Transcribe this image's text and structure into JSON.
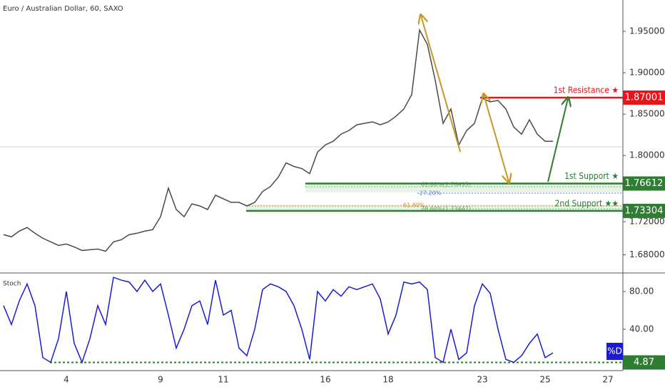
{
  "header": {
    "title": "Euro / Australian Dollar, 60, SAXO"
  },
  "annotations": [
    "61.80%(1.76435)",
    "-27.20%",
    "61.80%",
    "78.60%(1.73447)"
  ],
  "chart_data": [
    {
      "type": "line",
      "color": "#4a4a4a",
      "values": [
        1.7043,
        1.7017,
        1.7086,
        1.713,
        1.706,
        1.7,
        1.6956,
        1.6913,
        1.693,
        1.6895,
        1.6852,
        1.6861,
        1.6869,
        1.6843,
        1.6956,
        1.6982,
        1.7043,
        1.706,
        1.7086,
        1.7104,
        1.726,
        1.7607,
        1.7347,
        1.726,
        1.7416,
        1.739,
        1.7347,
        1.752,
        1.7477,
        1.7434,
        1.7434,
        1.739,
        1.7434,
        1.7564,
        1.7625,
        1.7738,
        1.7911,
        1.7868,
        1.7842,
        1.7781,
        1.8041,
        1.8128,
        1.8172,
        1.8258,
        1.8302,
        1.8371,
        1.8389,
        1.8406,
        1.8371,
        1.8406,
        1.8475,
        1.8562,
        1.8736,
        1.9517,
        1.9343,
        1.8909,
        1.8389,
        1.8562,
        1.8128,
        1.8302,
        1.8389,
        1.8692,
        1.8649,
        1.8666,
        1.8562,
        1.8345,
        1.8258,
        1.8432,
        1.8258,
        1.8172,
        1.8172,
        null,
        null,
        null,
        null,
        null,
        null,
        null
      ],
      "ylim": [
        1.658,
        1.988
      ],
      "yticks": [
        {
          "value": 1.95,
          "label": "1.95000"
        },
        {
          "value": 1.9,
          "label": "1.90000"
        },
        {
          "value": 1.85,
          "label": "1.85000"
        },
        {
          "value": 1.8,
          "label": "1.80000"
        },
        {
          "value": 1.72,
          "label": "1.72000"
        },
        {
          "value": 1.68,
          "label": "1.68000"
        }
      ],
      "levels": [
        {
          "label": "1st Resistance ★",
          "value": 1.87001,
          "color": "#e8141c"
        },
        {
          "label": "1st Support ★",
          "value": 1.76612,
          "color": "#2e7d32"
        },
        {
          "label": "2nd Support ★★",
          "value": 1.73304,
          "color": "#2e7d32"
        }
      ]
    },
    {
      "type": "line",
      "title": "Stoch",
      "categories": [
        null,
        null,
        null,
        null,
        null,
        null,
        null,
        null,
        "4",
        null,
        null,
        null,
        null,
        null,
        null,
        null,
        null,
        null,
        null,
        null,
        "9",
        null,
        null,
        null,
        null,
        null,
        null,
        null,
        "11",
        null,
        null,
        null,
        null,
        null,
        null,
        null,
        null,
        null,
        null,
        null,
        null,
        "16",
        null,
        null,
        null,
        null,
        null,
        null,
        null,
        "18",
        null,
        null,
        null,
        null,
        null,
        null,
        null,
        null,
        null,
        null,
        null,
        "23",
        null,
        null,
        null,
        null,
        null,
        null,
        null,
        "25",
        null,
        null,
        null,
        null,
        null,
        null,
        null,
        "27"
      ],
      "series": [
        {
          "name": "%D",
          "color": "#1c1ccf",
          "values": [
            65,
            45,
            70,
            88,
            65,
            10,
            5,
            30,
            80,
            25,
            5,
            30,
            65,
            45,
            95,
            92,
            90,
            80,
            92,
            80,
            88,
            55,
            20,
            40,
            65,
            70,
            45,
            92,
            55,
            60,
            20,
            12,
            40,
            82,
            88,
            85,
            80,
            65,
            40,
            8,
            80,
            70,
            82,
            75,
            85,
            82,
            85,
            88,
            72,
            35,
            55,
            90,
            88,
            90,
            82,
            10,
            5,
            40,
            8,
            15,
            65,
            88,
            78,
            40,
            8,
            5,
            12,
            25,
            35,
            10,
            15,
            null,
            null,
            null,
            null,
            null,
            null,
            null
          ]
        }
      ],
      "ylim": [
        -3.8,
        99.6
      ],
      "yticks": [
        {
          "value": 80,
          "label": "80.00"
        },
        {
          "value": 40,
          "label": "40.00"
        }
      ],
      "levels": [
        {
          "value": 4.87,
          "color": "#2e7d32"
        }
      ]
    }
  ]
}
